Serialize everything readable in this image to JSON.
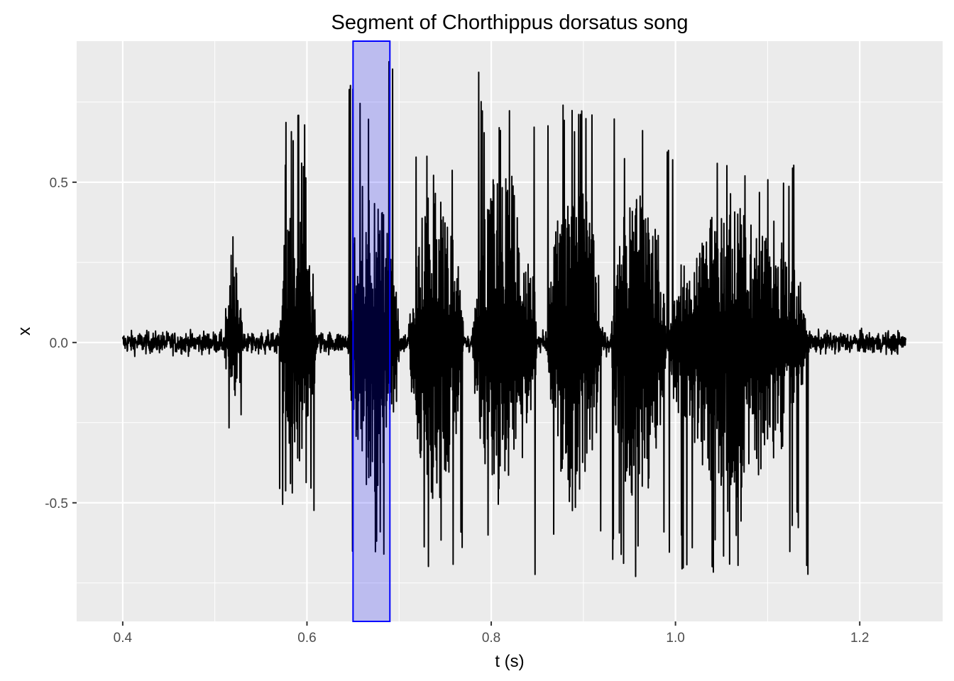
{
  "chart_data": {
    "type": "line",
    "title": "Segment of Chorthippus dorsatus song",
    "xlabel": "t (s)",
    "ylabel": "x",
    "xlim": [
      0.35,
      1.29
    ],
    "ylim": [
      -0.87,
      0.94
    ],
    "x_ticks": [
      0.4,
      0.6,
      0.8,
      1.0,
      1.2
    ],
    "x_tick_labels": [
      "0.4",
      "0.6",
      "0.8",
      "1.0",
      "1.2"
    ],
    "y_ticks": [
      -0.5,
      0.0,
      0.5
    ],
    "y_tick_labels": [
      "-0.5",
      "0.0",
      "0.5"
    ],
    "grid": true,
    "background": "#ebebeb",
    "grid_color": "#ffffff",
    "line_color": "#000000",
    "highlight": {
      "x_range": [
        0.65,
        0.69
      ],
      "fill": "#0000ff",
      "fill_opacity": 0.2,
      "stroke": "#0000ff"
    },
    "series": [
      {
        "t_range": [
          0.4,
          1.25
        ],
        "baseline_noise_amplitude": 0.03,
        "bursts": [
          {
            "t_start": 0.51,
            "t_end": 0.53,
            "peak_pos": 0.36,
            "peak_neg": -0.3
          },
          {
            "t_start": 0.57,
            "t_end": 0.61,
            "peak_pos": 0.71,
            "peak_neg": -0.57
          },
          {
            "t_start": 0.645,
            "t_end": 0.7,
            "peak_pos": 0.86,
            "peak_neg": -0.72
          },
          {
            "t_start": 0.71,
            "t_end": 0.77,
            "peak_pos": 0.68,
            "peak_neg": -0.73
          },
          {
            "t_start": 0.78,
            "t_end": 0.85,
            "peak_pos": 0.83,
            "peak_neg": -0.79
          },
          {
            "t_start": 0.86,
            "t_end": 0.92,
            "peak_pos": 0.79,
            "peak_neg": -0.78
          },
          {
            "t_start": 0.93,
            "t_end": 0.99,
            "peak_pos": 0.72,
            "peak_neg": -0.74
          },
          {
            "t_start": 0.99,
            "t_end": 1.145,
            "peak_pos": 0.64,
            "peak_neg": -0.72
          }
        ]
      }
    ]
  }
}
